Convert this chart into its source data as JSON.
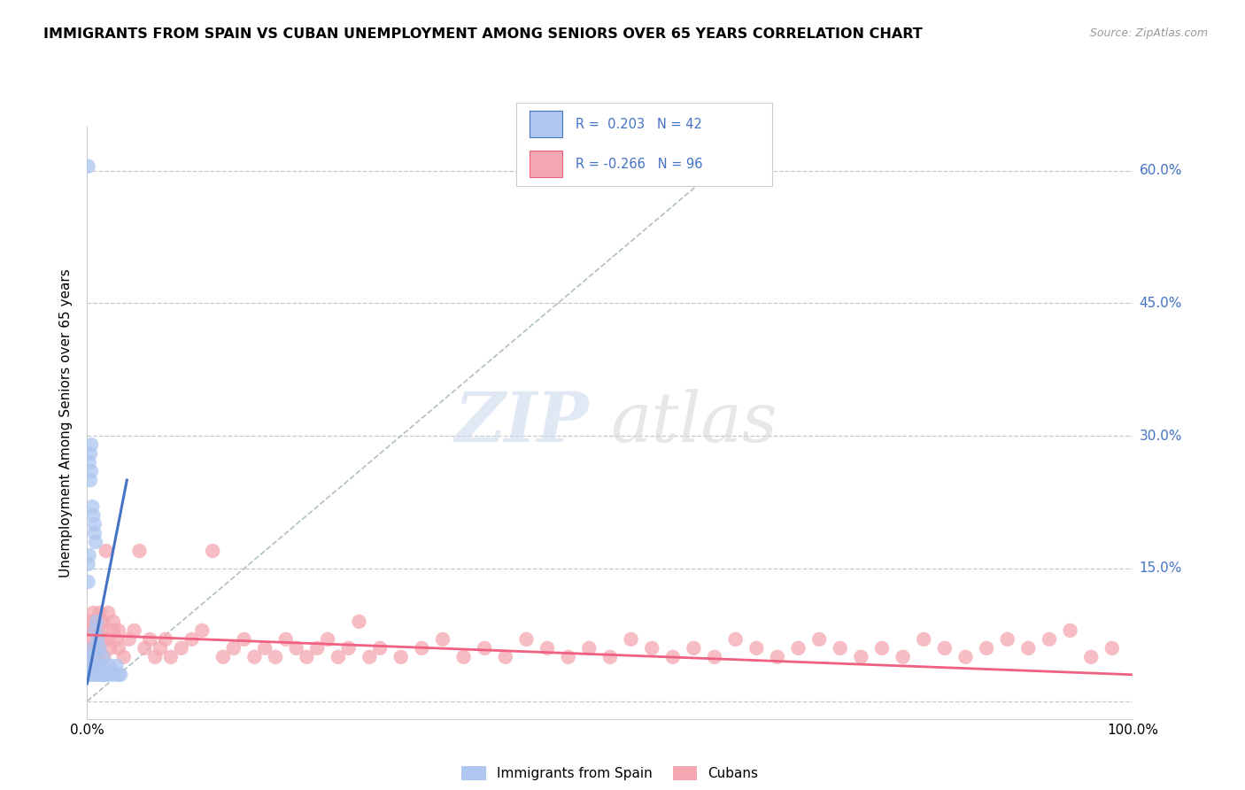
{
  "title": "IMMIGRANTS FROM SPAIN VS CUBAN UNEMPLOYMENT AMONG SENIORS OVER 65 YEARS CORRELATION CHART",
  "source": "Source: ZipAtlas.com",
  "ylabel": "Unemployment Among Seniors over 65 years",
  "y_ticks": [
    0.0,
    0.15,
    0.3,
    0.45,
    0.6
  ],
  "y_tick_labels": [
    "",
    "15.0%",
    "30.0%",
    "45.0%",
    "60.0%"
  ],
  "x_range": [
    0.0,
    1.0
  ],
  "y_range": [
    -0.02,
    0.65
  ],
  "legend_R1": "R =  0.203",
  "legend_N1": "N = 42",
  "legend_R2": "R = -0.266",
  "legend_N2": "N = 96",
  "color_spain": "#aec6f0",
  "color_cuba": "#f4a7b0",
  "color_spain_line": "#4472c4",
  "color_cuba_line": "#f06080",
  "color_diagonal": "#b0bec5",
  "watermark_zip": "ZIP",
  "watermark_atlas": "atlas",
  "legend_label1": "Immigrants from Spain",
  "legend_label2": "Cubans",
  "spain_scatter_x": [
    0.001,
    0.001,
    0.002,
    0.002,
    0.003,
    0.003,
    0.004,
    0.004,
    0.005,
    0.005,
    0.005,
    0.006,
    0.006,
    0.007,
    0.007,
    0.007,
    0.008,
    0.008,
    0.009,
    0.009,
    0.01,
    0.01,
    0.011,
    0.012,
    0.012,
    0.013,
    0.014,
    0.015,
    0.015,
    0.016,
    0.018,
    0.02,
    0.022,
    0.025,
    0.028,
    0.03,
    0.032,
    0.002,
    0.003,
    0.004,
    0.001,
    0.002
  ],
  "spain_scatter_y": [
    0.605,
    0.135,
    0.04,
    0.03,
    0.05,
    0.25,
    0.04,
    0.26,
    0.05,
    0.22,
    0.03,
    0.21,
    0.06,
    0.2,
    0.19,
    0.04,
    0.18,
    0.08,
    0.09,
    0.03,
    0.07,
    0.04,
    0.04,
    0.06,
    0.03,
    0.03,
    0.03,
    0.05,
    0.04,
    0.03,
    0.03,
    0.03,
    0.04,
    0.03,
    0.04,
    0.03,
    0.03,
    0.27,
    0.28,
    0.29,
    0.155,
    0.165
  ],
  "cuba_scatter_x": [
    0.003,
    0.004,
    0.005,
    0.006,
    0.007,
    0.008,
    0.009,
    0.01,
    0.011,
    0.012,
    0.013,
    0.014,
    0.015,
    0.016,
    0.018,
    0.02,
    0.022,
    0.025,
    0.028,
    0.03,
    0.035,
    0.04,
    0.045,
    0.05,
    0.055,
    0.06,
    0.065,
    0.07,
    0.075,
    0.08,
    0.09,
    0.1,
    0.11,
    0.12,
    0.13,
    0.14,
    0.15,
    0.16,
    0.17,
    0.18,
    0.19,
    0.2,
    0.21,
    0.22,
    0.23,
    0.24,
    0.25,
    0.26,
    0.27,
    0.28,
    0.3,
    0.32,
    0.34,
    0.36,
    0.38,
    0.4,
    0.42,
    0.44,
    0.46,
    0.48,
    0.5,
    0.52,
    0.54,
    0.56,
    0.58,
    0.6,
    0.62,
    0.64,
    0.66,
    0.68,
    0.7,
    0.72,
    0.74,
    0.76,
    0.78,
    0.8,
    0.82,
    0.84,
    0.86,
    0.88,
    0.9,
    0.92,
    0.94,
    0.96,
    0.98,
    0.004,
    0.005,
    0.006,
    0.007,
    0.008,
    0.01,
    0.012,
    0.015,
    0.02,
    0.025,
    0.03
  ],
  "cuba_scatter_y": [
    0.04,
    0.06,
    0.05,
    0.07,
    0.08,
    0.06,
    0.05,
    0.08,
    0.07,
    0.06,
    0.09,
    0.07,
    0.08,
    0.05,
    0.17,
    0.07,
    0.06,
    0.08,
    0.07,
    0.06,
    0.05,
    0.07,
    0.08,
    0.17,
    0.06,
    0.07,
    0.05,
    0.06,
    0.07,
    0.05,
    0.06,
    0.07,
    0.08,
    0.17,
    0.05,
    0.06,
    0.07,
    0.05,
    0.06,
    0.05,
    0.07,
    0.06,
    0.05,
    0.06,
    0.07,
    0.05,
    0.06,
    0.09,
    0.05,
    0.06,
    0.05,
    0.06,
    0.07,
    0.05,
    0.06,
    0.05,
    0.07,
    0.06,
    0.05,
    0.06,
    0.05,
    0.07,
    0.06,
    0.05,
    0.06,
    0.05,
    0.07,
    0.06,
    0.05,
    0.06,
    0.07,
    0.06,
    0.05,
    0.06,
    0.05,
    0.07,
    0.06,
    0.05,
    0.06,
    0.07,
    0.06,
    0.07,
    0.08,
    0.05,
    0.06,
    0.09,
    0.08,
    0.1,
    0.09,
    0.08,
    0.09,
    0.1,
    0.09,
    0.1,
    0.09,
    0.08
  ],
  "spain_trendline_x": [
    0.0,
    0.038
  ],
  "spain_trendline_y": [
    0.02,
    0.25
  ],
  "cuba_trendline_x": [
    0.0,
    1.0
  ],
  "cuba_trendline_y": [
    0.075,
    0.03
  ]
}
